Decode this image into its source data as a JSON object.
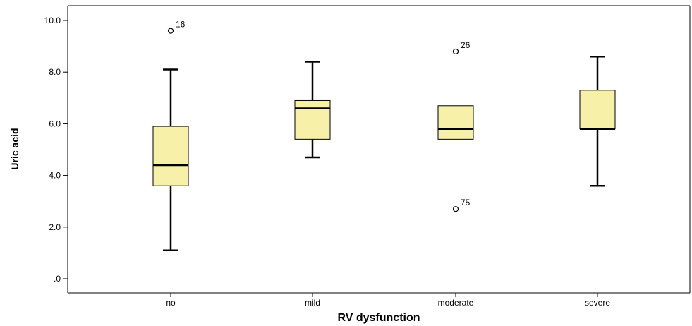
{
  "chart_data": {
    "type": "boxplot",
    "xlabel": "RV dysfunction",
    "ylabel": "Uric acid",
    "ylim": [
      -0.2,
      10.3
    ],
    "yticks": [
      {
        "value": 0,
        "label": ".0"
      },
      {
        "value": 2,
        "label": "2.0"
      },
      {
        "value": 4,
        "label": "4.0"
      },
      {
        "value": 6,
        "label": "6.0"
      },
      {
        "value": 8,
        "label": "8.0"
      },
      {
        "value": 10,
        "label": "10.0"
      }
    ],
    "categories": [
      "no",
      "mild",
      "moderate",
      "severe"
    ],
    "boxes": [
      {
        "category": "no",
        "whisker_low": 1.1,
        "q1": 3.6,
        "median": 4.4,
        "q3": 5.9,
        "whisker_high": 8.1,
        "outliers": [
          {
            "value": 9.6,
            "label": "16"
          }
        ]
      },
      {
        "category": "mild",
        "whisker_low": 4.7,
        "q1": 5.4,
        "median": 6.6,
        "q3": 6.9,
        "whisker_high": 8.4,
        "outliers": []
      },
      {
        "category": "moderate",
        "whisker_low": 5.4,
        "q1": 5.4,
        "median": 5.8,
        "q3": 6.7,
        "whisker_high": 6.7,
        "outliers": [
          {
            "value": 8.8,
            "label": "26"
          },
          {
            "value": 2.7,
            "label": "75"
          }
        ]
      },
      {
        "category": "severe",
        "whisker_low": 3.6,
        "q1": 5.8,
        "median": 5.8,
        "q3": 7.3,
        "whisker_high": 8.6,
        "outliers": []
      }
    ],
    "box_color": "#f7f0a8",
    "line_color": "#000000",
    "grid": false
  }
}
